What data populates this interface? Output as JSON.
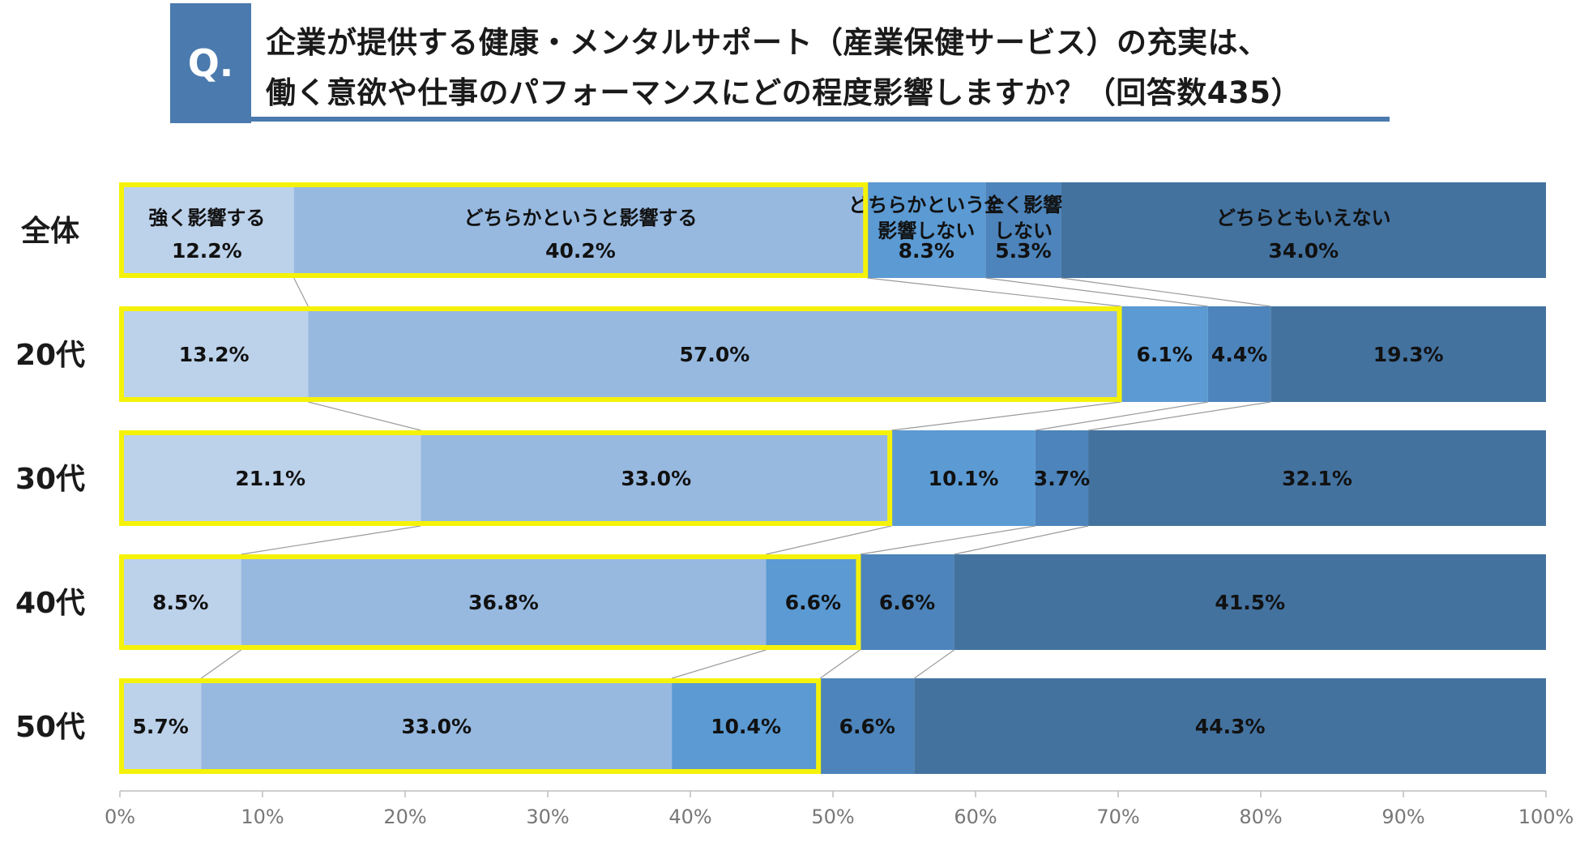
{
  "question": {
    "badge": "Q.",
    "line1": "企業が提供する健康・メンタルサポート（産業保健サービス）の充実は、",
    "line2": "働く意欲や仕事のパフォーマンスにどの程度影響しますか？（回答数435）"
  },
  "colors": {
    "accent": "#4a7aae",
    "highlight": "#f5f20a",
    "connector": "#9a9a9a"
  },
  "chart_data": {
    "type": "bar",
    "orientation": "horizontal-stacked-100",
    "title": "企業が提供する健康・メンタルサポート（産業保健サービス）の充実は、働く意欲や仕事のパフォーマンスにどの程度影響しますか？（回答数435）",
    "categories": [
      "全体",
      "20代",
      "30代",
      "40代",
      "50代"
    ],
    "series": [
      {
        "name": "強く影響する",
        "legend_lines": [
          "強く影響する"
        ],
        "color": "#bcd1ea",
        "values": [
          12.2,
          13.2,
          21.1,
          8.5,
          5.7
        ]
      },
      {
        "name": "どちらかというと影響する",
        "legend_lines": [
          "どちらかというと影響する"
        ],
        "color": "#97b9e0",
        "values": [
          40.2,
          57.0,
          33.0,
          36.8,
          33.0
        ]
      },
      {
        "name": "どちらかというと影響しない",
        "legend_lines": [
          "どちらかというと",
          "影響しない"
        ],
        "color": "#5b9ad3",
        "values": [
          8.3,
          6.1,
          10.1,
          6.6,
          10.4
        ]
      },
      {
        "name": "全く影響しない",
        "legend_lines": [
          "全く影響",
          "しない"
        ],
        "color": "#4d84bb",
        "values": [
          5.3,
          4.4,
          3.7,
          6.6,
          6.6
        ]
      },
      {
        "name": "どちらともいえない",
        "legend_lines": [
          "どちらともいえない"
        ],
        "color": "#43729f",
        "values": [
          34.0,
          19.3,
          32.1,
          41.5,
          44.3
        ]
      }
    ],
    "value_labels": [
      [
        "12.2%",
        "40.2%",
        "8.3%",
        "5.3%",
        "34.0%"
      ],
      [
        "13.2%",
        "57.0%",
        "6.1%",
        "4.4%",
        "19.3%"
      ],
      [
        "21.1%",
        "33.0%",
        "10.1%",
        "3.7%",
        "32.1%"
      ],
      [
        "8.5%",
        "36.8%",
        "6.6%",
        "6.6%",
        "41.5%"
      ],
      [
        "5.7%",
        "33.0%",
        "10.4%",
        "6.6%",
        "44.3%"
      ]
    ],
    "highlight_through_series": [
      1,
      1,
      1,
      2,
      2
    ],
    "xlim": [
      0,
      100
    ],
    "xticks": [
      "0%",
      "10%",
      "20%",
      "30%",
      "40%",
      "50%",
      "60%",
      "70%",
      "80%",
      "90%",
      "100%"
    ],
    "grid": false,
    "legend": "inside-first-bar"
  }
}
